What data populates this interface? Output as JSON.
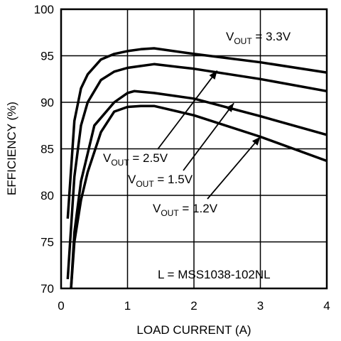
{
  "chart_data": {
    "type": "line",
    "xlabel": "LOAD CURRENT (A)",
    "ylabel": "EFFICIENCY (%)",
    "xlim": [
      0,
      4
    ],
    "ylim": [
      70,
      100
    ],
    "x_ticks": [
      "0",
      "1",
      "2",
      "3",
      "4"
    ],
    "y_ticks": [
      "70",
      "75",
      "80",
      "85",
      "90",
      "95",
      "100"
    ],
    "grid": true,
    "series": [
      {
        "name": "V_OUT = 3.3V",
        "label_prefix": "V",
        "label_sub": "OUT",
        "label_suffix": " = 3.3V",
        "points": [
          [
            0.1,
            77.5
          ],
          [
            0.2,
            88.0
          ],
          [
            0.3,
            91.5
          ],
          [
            0.4,
            93.0
          ],
          [
            0.6,
            94.6
          ],
          [
            0.8,
            95.2
          ],
          [
            1.0,
            95.5
          ],
          [
            1.2,
            95.7
          ],
          [
            1.4,
            95.8
          ],
          [
            2.0,
            95.2
          ],
          [
            3.0,
            94.3
          ],
          [
            4.0,
            93.2
          ]
        ]
      },
      {
        "name": "V_OUT = 2.5V",
        "label_prefix": "V",
        "label_sub": "OUT",
        "label_suffix": " = 2.5V",
        "points": [
          [
            0.1,
            71.0
          ],
          [
            0.2,
            82.0
          ],
          [
            0.3,
            87.5
          ],
          [
            0.4,
            90.0
          ],
          [
            0.6,
            92.4
          ],
          [
            0.8,
            93.3
          ],
          [
            1.0,
            93.7
          ],
          [
            1.2,
            93.9
          ],
          [
            1.4,
            94.1
          ],
          [
            2.0,
            93.6
          ],
          [
            3.0,
            92.5
          ],
          [
            4.0,
            91.2
          ]
        ]
      },
      {
        "name": "V_OUT = 1.5V",
        "label_prefix": "V",
        "label_sub": "OUT",
        "label_suffix": " = 1.5V",
        "points": [
          [
            0.15,
            70.0
          ],
          [
            0.2,
            76.0
          ],
          [
            0.3,
            81.5
          ],
          [
            0.4,
            84.5
          ],
          [
            0.5,
            87.5
          ],
          [
            0.8,
            90.0
          ],
          [
            1.0,
            91.0
          ],
          [
            1.1,
            91.2
          ],
          [
            1.4,
            91.0
          ],
          [
            2.0,
            90.4
          ],
          [
            3.0,
            88.5
          ],
          [
            4.0,
            86.5
          ]
        ]
      },
      {
        "name": "V_OUT = 1.2V",
        "label_prefix": "V",
        "label_sub": "OUT",
        "label_suffix": " = 1.2V",
        "points": [
          [
            0.15,
            70.0
          ],
          [
            0.2,
            75.0
          ],
          [
            0.3,
            79.5
          ],
          [
            0.4,
            82.5
          ],
          [
            0.6,
            86.8
          ],
          [
            0.8,
            89.0
          ],
          [
            1.0,
            89.5
          ],
          [
            1.2,
            89.6
          ],
          [
            1.4,
            89.6
          ],
          [
            2.0,
            88.6
          ],
          [
            3.0,
            86.3
          ],
          [
            4.0,
            83.7
          ]
        ]
      }
    ],
    "annotation": "L = MSS1038-102NL"
  }
}
